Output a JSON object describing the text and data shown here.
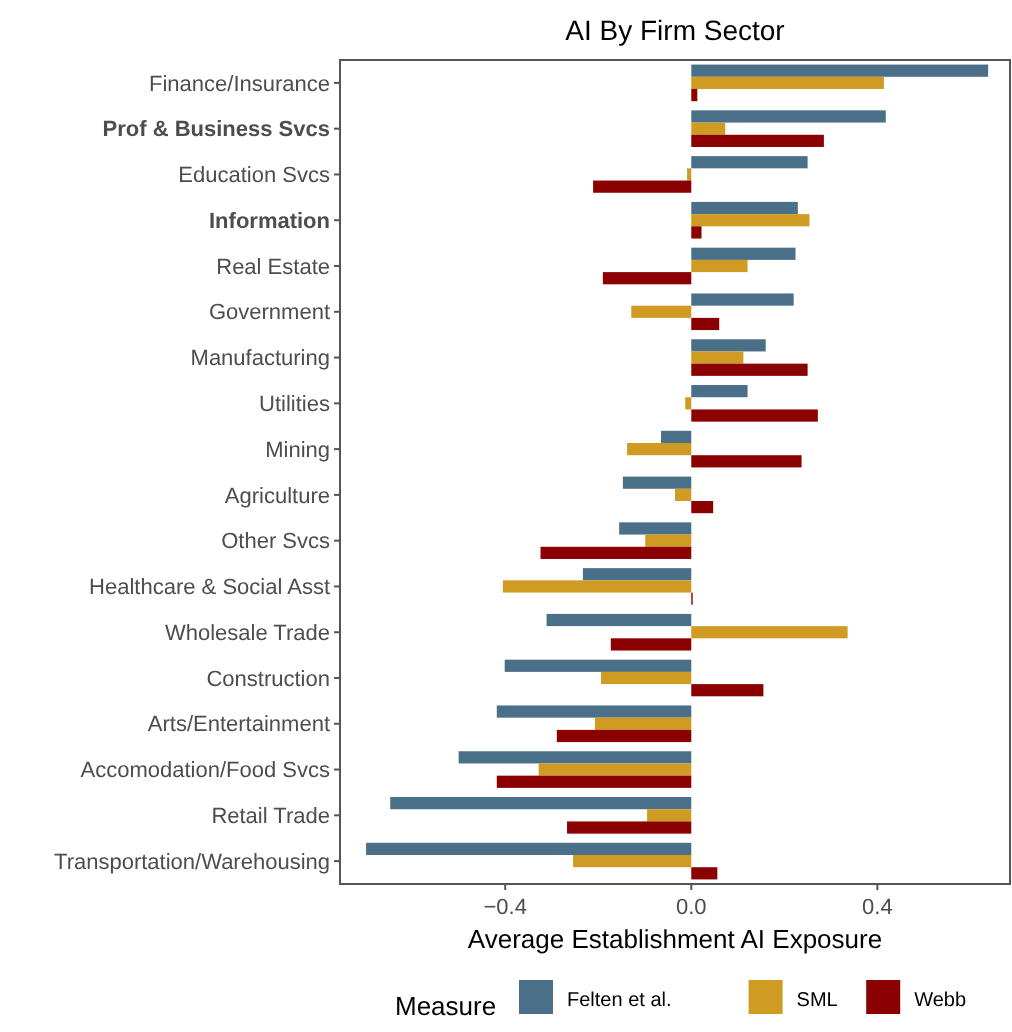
{
  "chart_data": {
    "type": "bar",
    "orientation": "horizontal",
    "title": "AI By Firm Sector",
    "xlabel": "Average Establishment AI Exposure",
    "legend_title": "Measure",
    "legend": "bottom",
    "grid": false,
    "categories": [
      "Finance/Insurance",
      "Prof & Business Svcs",
      "Education Svcs",
      "Information",
      "Real Estate",
      "Government",
      "Manufacturing",
      "Utilities",
      "Mining",
      "Agriculture",
      "Other Svcs",
      "Healthcare & Social Asst",
      "Wholesale Trade",
      "Construction",
      "Arts/Entertainment",
      "Accomodation/Food Svcs",
      "Retail Trade",
      "Transportation/Warehousing"
    ],
    "xlim": [
      -0.755,
      0.685
    ],
    "xticks": [
      {
        "value": -0.4,
        "label": "−0.4"
      },
      {
        "value": 0,
        "label": "0.0"
      },
      {
        "value": 0.4,
        "label": "0.4"
      }
    ],
    "series": [
      {
        "name": "Felten et al.",
        "color": "#4a7089",
        "values": [
          0.638,
          0.418,
          0.25,
          0.229,
          0.224,
          0.22,
          0.16,
          0.121,
          -0.065,
          -0.147,
          -0.155,
          -0.233,
          -0.311,
          -0.401,
          -0.418,
          -0.5,
          -0.647,
          -0.699
        ]
      },
      {
        "name": "SML",
        "color": "#cf9b22",
        "values": [
          0.414,
          0.073,
          -0.009,
          0.254,
          0.121,
          -0.129,
          0.112,
          -0.013,
          -0.138,
          -0.035,
          -0.099,
          -0.405,
          0.336,
          -0.194,
          -0.207,
          -0.328,
          -0.095,
          -0.254
        ]
      },
      {
        "name": "Webb",
        "color": "#8b0000",
        "values": [
          0.013,
          0.285,
          -0.211,
          0.022,
          -0.19,
          0.06,
          0.25,
          0.272,
          0.237,
          0.047,
          -0.324,
          0.003,
          -0.173,
          0.155,
          -0.289,
          -0.418,
          -0.267,
          0.056
        ]
      }
    ]
  }
}
